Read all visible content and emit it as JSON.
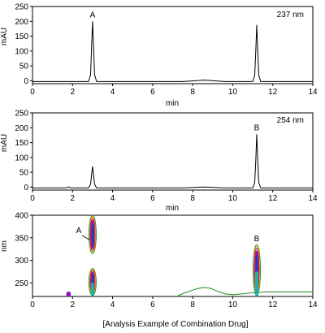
{
  "caption": "[Analysis Example of Combination Drug]",
  "chart_data": [
    {
      "type": "line",
      "id": "chromatogram-237",
      "wavelength_label": "237 nm",
      "xlabel": "min",
      "ylabel": "mAU",
      "xlim": [
        0,
        14
      ],
      "ylim": [
        -10,
        250
      ],
      "xticks": [
        0,
        2,
        4,
        6,
        8,
        10,
        12,
        14
      ],
      "yticks": [
        0,
        50,
        100,
        150,
        200,
        250
      ],
      "peaks": [
        {
          "label": "A",
          "x": 3.0,
          "y": 200
        },
        {
          "label": "",
          "x": 11.2,
          "y": 188
        }
      ],
      "series": [
        {
          "x": [
            0,
            2.8,
            2.9,
            2.95,
            3.0,
            3.05,
            3.1,
            3.2,
            7.5,
            8.6,
            9.6,
            11.0,
            11.1,
            11.15,
            11.2,
            11.25,
            11.3,
            11.4,
            14
          ],
          "y": [
            -3,
            -3,
            20,
            110,
            200,
            110,
            20,
            -3,
            -3,
            2,
            -3,
            -3,
            18,
            100,
            188,
            100,
            18,
            -3,
            -3
          ]
        }
      ]
    },
    {
      "type": "line",
      "id": "chromatogram-254",
      "wavelength_label": "254 nm",
      "xlabel": "min",
      "ylabel": "mAU",
      "xlim": [
        0,
        14
      ],
      "ylim": [
        -10,
        250
      ],
      "xticks": [
        0,
        2,
        4,
        6,
        8,
        10,
        12,
        14
      ],
      "yticks": [
        0,
        50,
        100,
        150,
        200,
        250
      ],
      "peaks": [
        {
          "label": "",
          "x": 3.0,
          "y": 70
        },
        {
          "label": "B",
          "x": 11.2,
          "y": 178
        }
      ],
      "series": [
        {
          "x": [
            0,
            1.7,
            1.8,
            1.9,
            2.8,
            2.9,
            3.0,
            3.1,
            3.2,
            7.5,
            8.6,
            9.6,
            11.0,
            11.1,
            11.15,
            11.2,
            11.25,
            11.3,
            11.4,
            14
          ],
          "y": [
            -3,
            -3,
            1,
            -3,
            -3,
            10,
            70,
            10,
            -3,
            -3,
            0,
            -3,
            -3,
            15,
            90,
            178,
            90,
            15,
            -3,
            -3
          ]
        }
      ]
    },
    {
      "type": "heatmap",
      "id": "contour-plot",
      "xlabel": "",
      "ylabel": "nm",
      "xlim": [
        0,
        14
      ],
      "ylim": [
        220,
        400
      ],
      "xticks": [
        0,
        2,
        4,
        6,
        8,
        10,
        12,
        14
      ],
      "yticks": [
        250,
        300,
        350,
        400
      ],
      "peaks": [
        {
          "label": "A",
          "x": 3.0,
          "nm_min": 222,
          "nm_max": 400
        },
        {
          "label": "B",
          "x": 11.2,
          "nm_min": 222,
          "nm_max": 335
        },
        {
          "label": "",
          "x": 1.8,
          "nm_min": 222,
          "nm_max": 228
        }
      ],
      "outer_contour": {
        "x": [
          7.2,
          7.6,
          8.0,
          8.3,
          8.6,
          8.9,
          9.2,
          9.6,
          10.0,
          10.5,
          10.9,
          11.0,
          11.4,
          11.6,
          12.0,
          13.0,
          14.0
        ],
        "y": [
          220,
          228,
          234,
          238,
          240,
          238,
          232,
          226,
          224,
          226,
          228,
          228,
          229,
          230,
          230,
          230,
          230
        ]
      },
      "colors": {
        "outer": "#1e8a1e",
        "mid": "#c8a000",
        "warm": "#d02020",
        "core": "#c000c0",
        "cool": "#20b0b0",
        "deep": "#2040c0"
      }
    }
  ]
}
